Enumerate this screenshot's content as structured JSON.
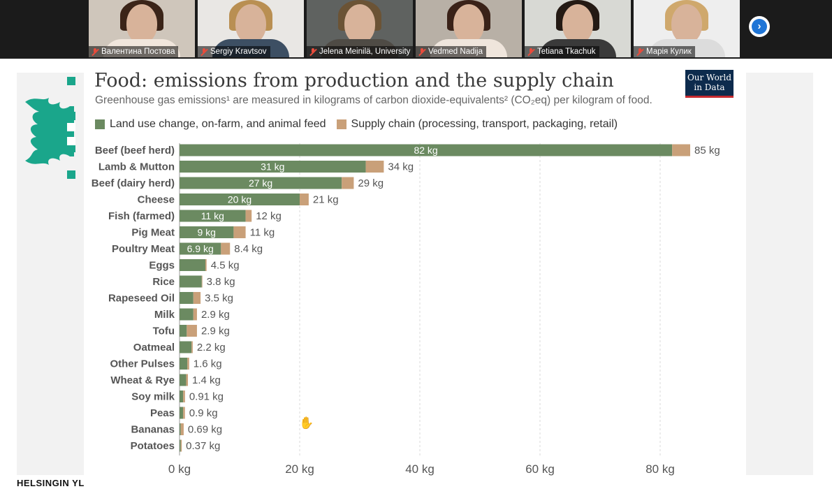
{
  "participants": [
    {
      "name": "Валентина Постова",
      "hair": "#3b2418",
      "shirt": "#f1e6dc",
      "bg": "#cfc6bb"
    },
    {
      "name": "Sergiy Kravtsov",
      "hair": "#b98f52",
      "shirt": "#3d4f63",
      "bg": "#e9e7e4"
    },
    {
      "name": "Jelena Meinilä, University ...",
      "hair": "#6b5335",
      "shirt": "#4f4b45",
      "bg": "#5f6260"
    },
    {
      "name": "Vedmed Nadija",
      "hair": "#3a2218",
      "shirt": "#efe5dc",
      "bg": "#b8b0a6"
    },
    {
      "name": "Tetiana Tkachuk",
      "hair": "#241a14",
      "shirt": "#3a3a3a",
      "bg": "#d8d9d4"
    },
    {
      "name": "Марія Кулик",
      "hair": "#cfa86c",
      "shirt": "#dcdcdc",
      "bg": "#eeeeee"
    }
  ],
  "slide": {
    "title": "Food: emissions from production and the supply chain",
    "subtitle": "Greenhouse gas emissions¹ are measured in kilograms of carbon dioxide-equivalents² (CO₂eq) per kilogram of food.",
    "owid_logo": [
      "Our World",
      "in Data"
    ],
    "footer_text": "HELSINGIN YL",
    "legend": [
      {
        "label": "Land use change, on-farm, and animal feed",
        "color": "#6b8a61"
      },
      {
        "label": "Supply chain (processing, transport, packaging, retail)",
        "color": "#c9a079"
      }
    ]
  },
  "chart_data": {
    "type": "bar",
    "orientation": "horizontal",
    "stacked": true,
    "title": "Food: emissions from production and the supply chain",
    "xlabel": "",
    "xlim": [
      0,
      85
    ],
    "xticks": [
      0,
      20,
      40,
      60,
      80
    ],
    "xtick_labels": [
      "0 kg",
      "20 kg",
      "40 kg",
      "60 kg",
      "80 kg"
    ],
    "categories": [
      "Beef (beef herd)",
      "Lamb & Mutton",
      "Beef (dairy herd)",
      "Cheese",
      "Fish (farmed)",
      "Pig Meat",
      "Poultry Meat",
      "Eggs",
      "Rice",
      "Rapeseed Oil",
      "Milk",
      "Tofu",
      "Oatmeal",
      "Other Pulses",
      "Wheat & Rye",
      "Soy milk",
      "Peas",
      "Bananas",
      "Potatoes"
    ],
    "series": [
      {
        "name": "Land use change, on-farm, and animal feed",
        "values": [
          82,
          31,
          27,
          20,
          11,
          9,
          6.9,
          4.3,
          3.7,
          2.3,
          2.3,
          1.2,
          2.0,
          1.3,
          1.1,
          0.6,
          0.6,
          0.2,
          0.2
        ]
      },
      {
        "name": "Supply chain (processing, transport, packaging, retail)",
        "values": [
          3,
          3,
          2,
          1.5,
          1,
          2,
          1.5,
          0.2,
          0.1,
          1.2,
          0.6,
          1.7,
          0.2,
          0.3,
          0.3,
          0.31,
          0.3,
          0.49,
          0.17
        ]
      }
    ],
    "inner_labels": [
      "82 kg",
      "31 kg",
      "27 kg",
      "20 kg",
      "11 kg",
      "9 kg",
      "6.9 kg",
      "",
      "",
      "",
      "",
      "",
      "",
      "",
      "",
      "",
      "",
      "",
      ""
    ],
    "total_labels": [
      "85 kg",
      "34 kg",
      "29 kg",
      "21 kg",
      "12 kg",
      "11 kg",
      "8.4 kg",
      "4.5 kg",
      "3.8 kg",
      "3.5 kg",
      "2.9 kg",
      "2.9 kg",
      "2.2 kg",
      "1.6 kg",
      "1.4 kg",
      "0.91 kg",
      "0.9 kg",
      "0.69 kg",
      "0.37 kg"
    ]
  }
}
